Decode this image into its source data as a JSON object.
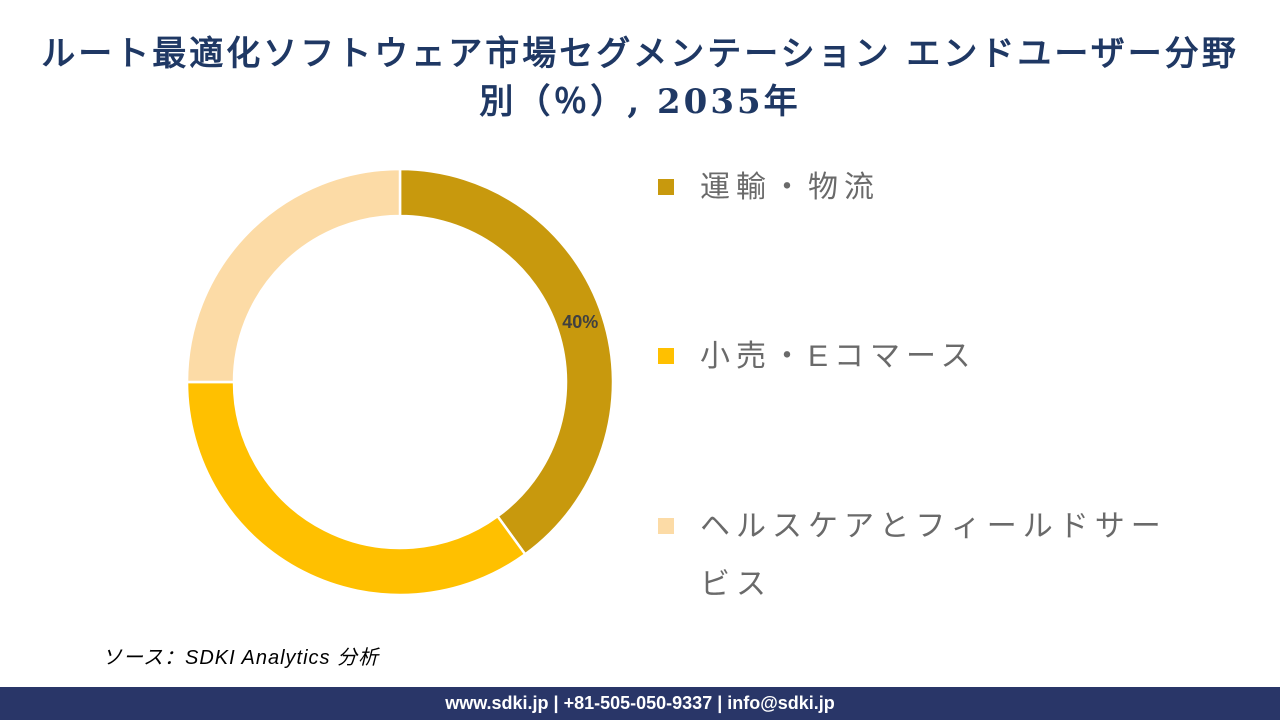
{
  "chart_data": {
    "type": "pie",
    "subtype": "donut",
    "title": "ルート最適化ソフトウェア市場セグメンテーション エンドユーザー分野別（％）, 2035年",
    "title_lines": [
      "ルート最適化ソフトウェア市場セグメンテーション エンドユーザー分野",
      "別（％）, 2035年"
    ],
    "title_color": "#1F3864",
    "segments": [
      {
        "label": "運輸・物流",
        "value": 40,
        "color": "#C8990D",
        "data_label": "40%"
      },
      {
        "label": "小売・Eコマース",
        "value": 35,
        "color": "#FFC000",
        "data_label": ""
      },
      {
        "label": "ヘルスケアとフィールドサービス",
        "value": 25,
        "color": "#FCDBA6",
        "data_label": ""
      }
    ],
    "start_angle_deg": 0,
    "direction": "clockwise",
    "donut_hole_ratio": 0.78,
    "legend_position": "right",
    "legend_text_color": "#6A6A6A",
    "data_label_color": "#404040",
    "separator_color": "#FFFFFF"
  },
  "source": {
    "text": "ソース：SDKI Analytics 分析"
  },
  "footer": {
    "text": "www.sdki.jp | +81-505-050-9337 | info@sdki.jp",
    "bg_color": "#293668"
  }
}
